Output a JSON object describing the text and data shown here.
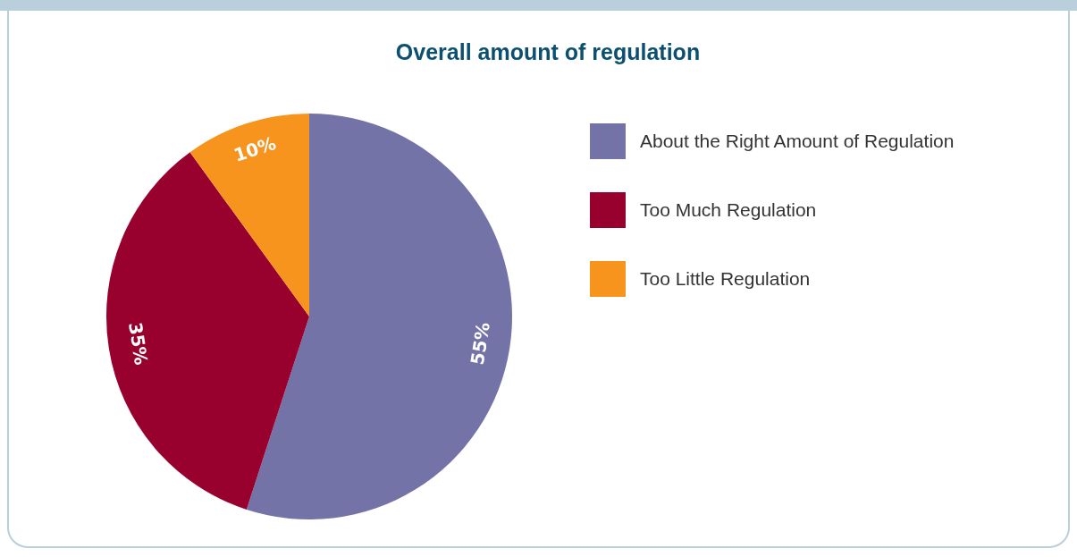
{
  "chart_data": {
    "type": "pie",
    "title": "Overall amount of regulation",
    "categories": [
      "About the Right Amount of Regulation",
      "Too Much Regulation",
      "Too Little Regulation"
    ],
    "values": [
      55,
      35,
      10
    ],
    "colors": [
      "#7473a8",
      "#98002e",
      "#f7941d"
    ],
    "value_labels": [
      "55%",
      "35%",
      "10%"
    ],
    "legend": "right"
  }
}
